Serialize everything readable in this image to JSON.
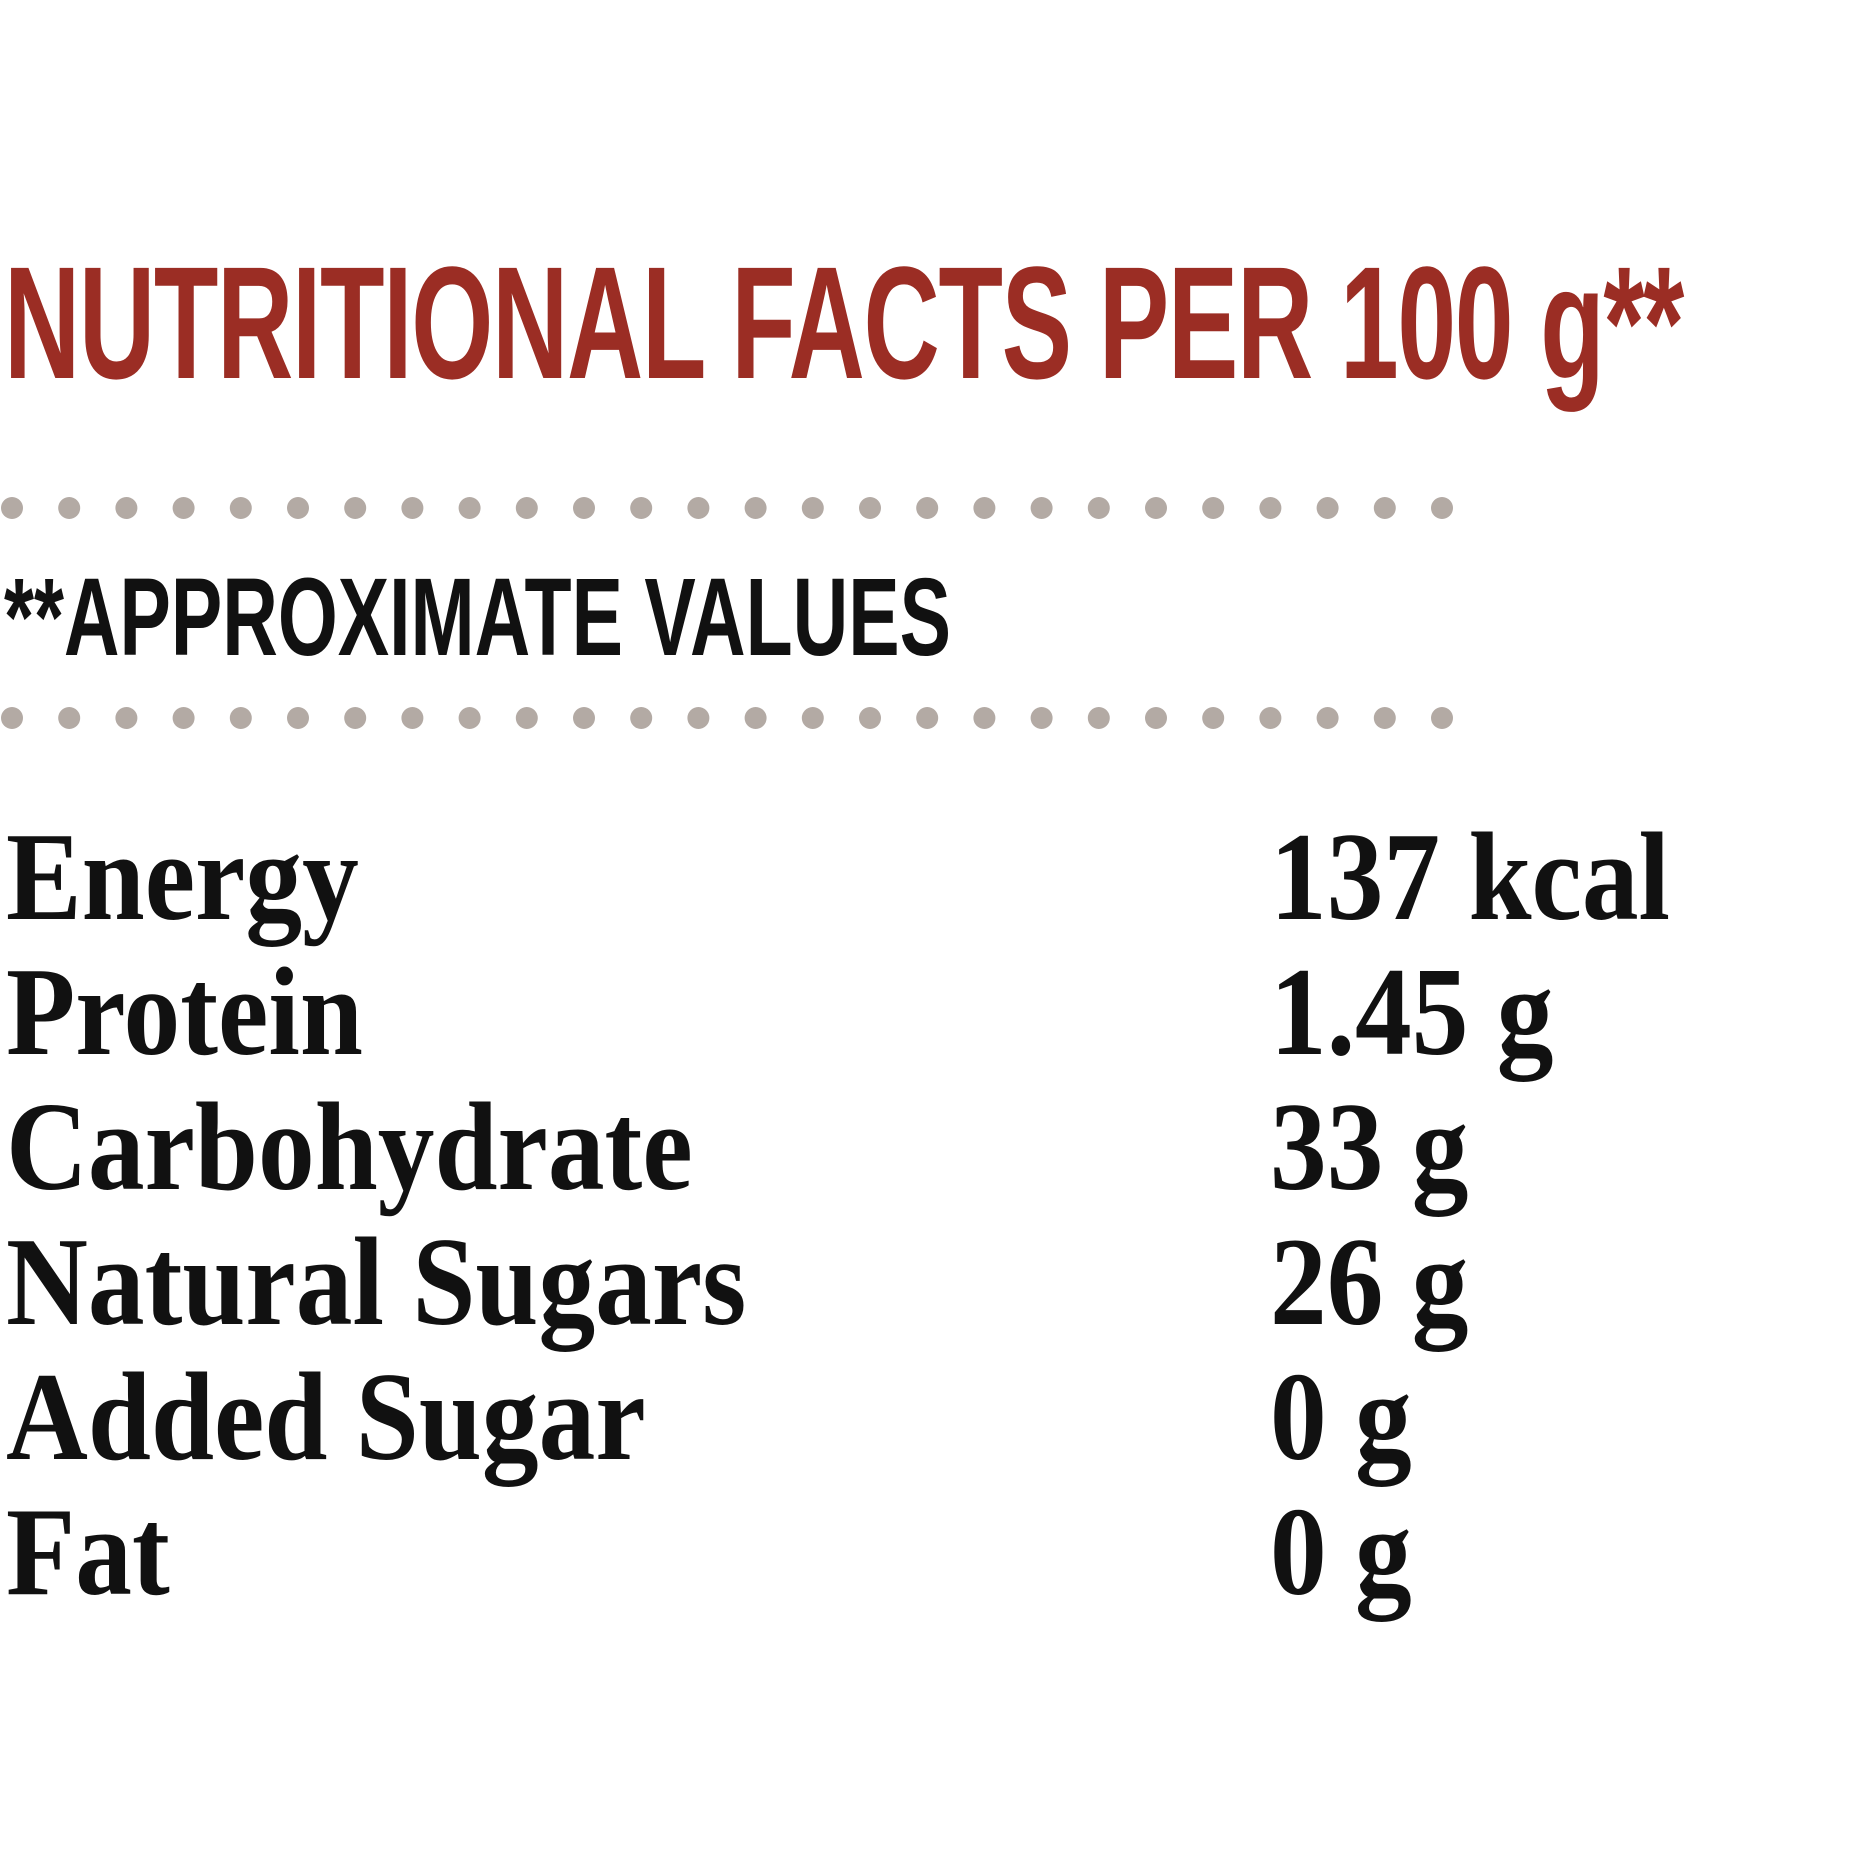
{
  "title": "NUTRITIONAL FACTS PER 100 g**",
  "note": "**APPROXIMATE VALUES",
  "colors": {
    "title": "#9b2d24",
    "text": "#111111",
    "dots": "#b3aaa4",
    "background": "#ffffff"
  },
  "facts": [
    {
      "label": "Energy",
      "value": "137 kcal"
    },
    {
      "label": "Protein",
      "value": "1.45 g"
    },
    {
      "label": "Carbohydrate",
      "value": "33 g"
    },
    {
      "label": "Natural Sugars",
      "value": "26 g"
    },
    {
      "label": "Added Sugar",
      "value": "0 g"
    },
    {
      "label": "Fat",
      "value": "0 g"
    }
  ]
}
